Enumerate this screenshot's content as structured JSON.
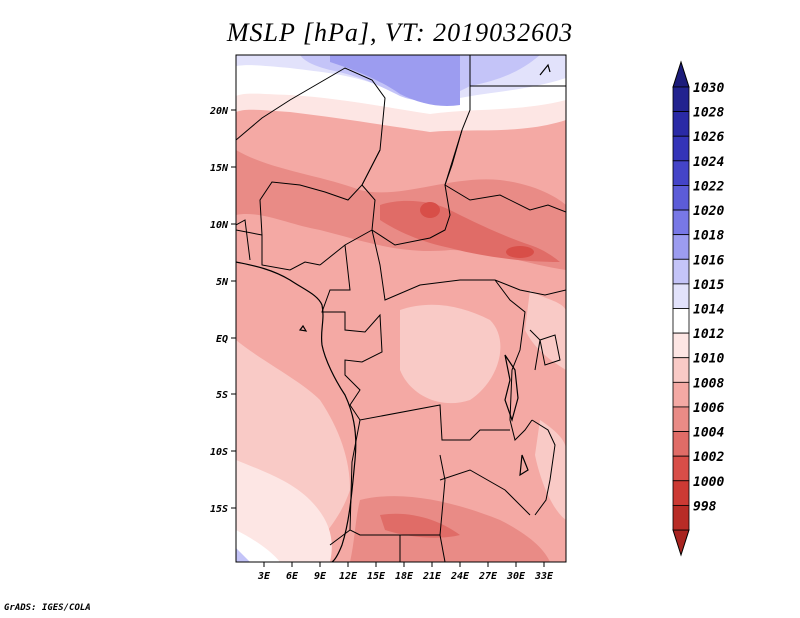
{
  "title": "MSLP [hPa], VT: 2019032603",
  "credit": "GrADS: IGES/COLA",
  "map": {
    "lat_ticks": [
      "20N",
      "15N",
      "10N",
      "5N",
      "EQ",
      "5S",
      "10S",
      "15S"
    ],
    "lon_ticks": [
      "3E",
      "6E",
      "9E",
      "12E",
      "15E",
      "18E",
      "21E",
      "24E",
      "27E",
      "30E",
      "33E"
    ]
  },
  "colorbar": {
    "levels": [
      {
        "label": "1030",
        "color": "#22238f"
      },
      {
        "label": "1028",
        "color": "#2a2aa6"
      },
      {
        "label": "1026",
        "color": "#3434b8"
      },
      {
        "label": "1024",
        "color": "#4444c8"
      },
      {
        "label": "1022",
        "color": "#5c5cd8"
      },
      {
        "label": "1020",
        "color": "#7878e6"
      },
      {
        "label": "1018",
        "color": "#9c9cf0"
      },
      {
        "label": "1016",
        "color": "#c4c4f8"
      },
      {
        "label": "1015",
        "color": "#e2e2fb"
      },
      {
        "label": "1014",
        "color": "#ffffff"
      },
      {
        "label": "1012",
        "color": "#fde6e4"
      },
      {
        "label": "1010",
        "color": "#f9cac6"
      },
      {
        "label": "1008",
        "color": "#f4a9a4"
      },
      {
        "label": "1006",
        "color": "#e98b86"
      },
      {
        "label": "1004",
        "color": "#e06c67"
      },
      {
        "label": "1002",
        "color": "#d84e48"
      },
      {
        "label": "1000",
        "color": "#cc3a34"
      },
      {
        "label": "998",
        "color": "#b82c26"
      }
    ],
    "top_arrow_color": "#1c1c7a",
    "bottom_arrow_color": "#a82420"
  }
}
